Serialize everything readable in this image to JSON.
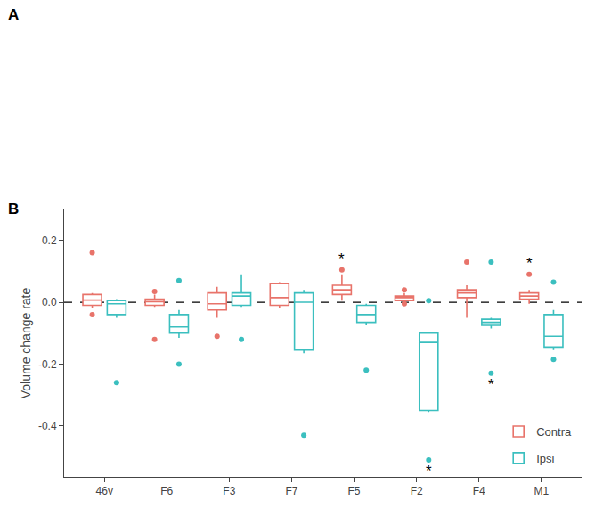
{
  "chart_data": {
    "type": "box",
    "panel_labels": [
      "A",
      "B"
    ],
    "categories": [
      "46v",
      "F6",
      "F3",
      "F7",
      "F5",
      "F2",
      "F4",
      "M1"
    ],
    "ylabel": "Volume change rate",
    "ylim": [
      -0.565,
      0.3
    ],
    "yticks": [
      -0.4,
      -0.2,
      {
        "value": 0.0,
        "label": "0.0"
      },
      0.2
    ],
    "grid": false,
    "legend": "lower right",
    "zero_line": 0,
    "series": [
      {
        "name": "Contra",
        "color": "#E8736A",
        "boxes": [
          {
            "q1": -0.01,
            "median": 0.007,
            "q3": 0.025,
            "whislo": -0.02,
            "whishi": 0.03,
            "fliers": [
              0.16,
              -0.04
            ]
          },
          {
            "q1": -0.01,
            "median": 0.002,
            "q3": 0.01,
            "whislo": -0.015,
            "whishi": 0.025,
            "fliers": [
              -0.12,
              0.035
            ]
          },
          {
            "q1": -0.025,
            "median": -0.005,
            "q3": 0.03,
            "whislo": -0.05,
            "whishi": 0.05,
            "fliers": [
              -0.11
            ]
          },
          {
            "q1": -0.01,
            "median": 0.015,
            "q3": 0.06,
            "whislo": -0.02,
            "whishi": 0.065,
            "fliers": []
          },
          {
            "q1": 0.025,
            "median": 0.04,
            "q3": 0.055,
            "whislo": 0.005,
            "whishi": 0.09,
            "fliers": [
              0.105
            ]
          },
          {
            "q1": 0.005,
            "median": 0.015,
            "q3": 0.02,
            "whislo": -0.003,
            "whishi": 0.03,
            "fliers": [
              0.04,
              -0.005
            ]
          },
          {
            "q1": 0.015,
            "median": 0.03,
            "q3": 0.04,
            "whislo": -0.05,
            "whishi": 0.055,
            "fliers": [
              0.13
            ]
          },
          {
            "q1": 0.01,
            "median": 0.02,
            "q3": 0.03,
            "whislo": -0.005,
            "whishi": 0.04,
            "fliers": [
              0.09
            ]
          }
        ]
      },
      {
        "name": "Ipsi",
        "color": "#3BBFBF",
        "boxes": [
          {
            "q1": -0.04,
            "median": -0.005,
            "q3": 0.005,
            "whislo": -0.05,
            "whishi": 0.01,
            "fliers": [
              -0.26
            ]
          },
          {
            "q1": -0.1,
            "median": -0.08,
            "q3": -0.04,
            "whislo": -0.115,
            "whishi": -0.025,
            "fliers": [
              -0.2,
              0.07
            ]
          },
          {
            "q1": -0.01,
            "median": 0.02,
            "q3": 0.03,
            "whislo": -0.015,
            "whishi": 0.09,
            "fliers": [
              -0.12
            ]
          },
          {
            "q1": -0.155,
            "median": 0.0,
            "q3": 0.03,
            "whislo": -0.165,
            "whishi": 0.04,
            "fliers": [
              -0.43
            ]
          },
          {
            "q1": -0.065,
            "median": -0.04,
            "q3": -0.01,
            "whislo": -0.075,
            "whishi": -0.005,
            "fliers": [
              -0.22
            ]
          },
          {
            "q1": -0.35,
            "median": -0.13,
            "q3": -0.1,
            "whislo": -0.355,
            "whishi": -0.095,
            "fliers": [
              -0.51,
              0.005
            ]
          },
          {
            "q1": -0.075,
            "median": -0.065,
            "q3": -0.055,
            "whislo": -0.085,
            "whishi": -0.05,
            "fliers": [
              -0.23,
              0.13
            ]
          },
          {
            "q1": -0.145,
            "median": -0.11,
            "q3": -0.04,
            "whislo": -0.155,
            "whishi": -0.025,
            "fliers": [
              -0.185,
              0.065
            ]
          }
        ]
      }
    ],
    "annotations": [
      {
        "text": "*",
        "category": "F5",
        "series": "Contra",
        "position": "above"
      },
      {
        "text": "*",
        "category": "M1",
        "series": "Contra",
        "position": "above"
      },
      {
        "text": "*",
        "category": "F2",
        "series": "Ipsi",
        "position": "below"
      },
      {
        "text": "*",
        "category": "F4",
        "series": "Ipsi",
        "position": "below"
      }
    ]
  }
}
